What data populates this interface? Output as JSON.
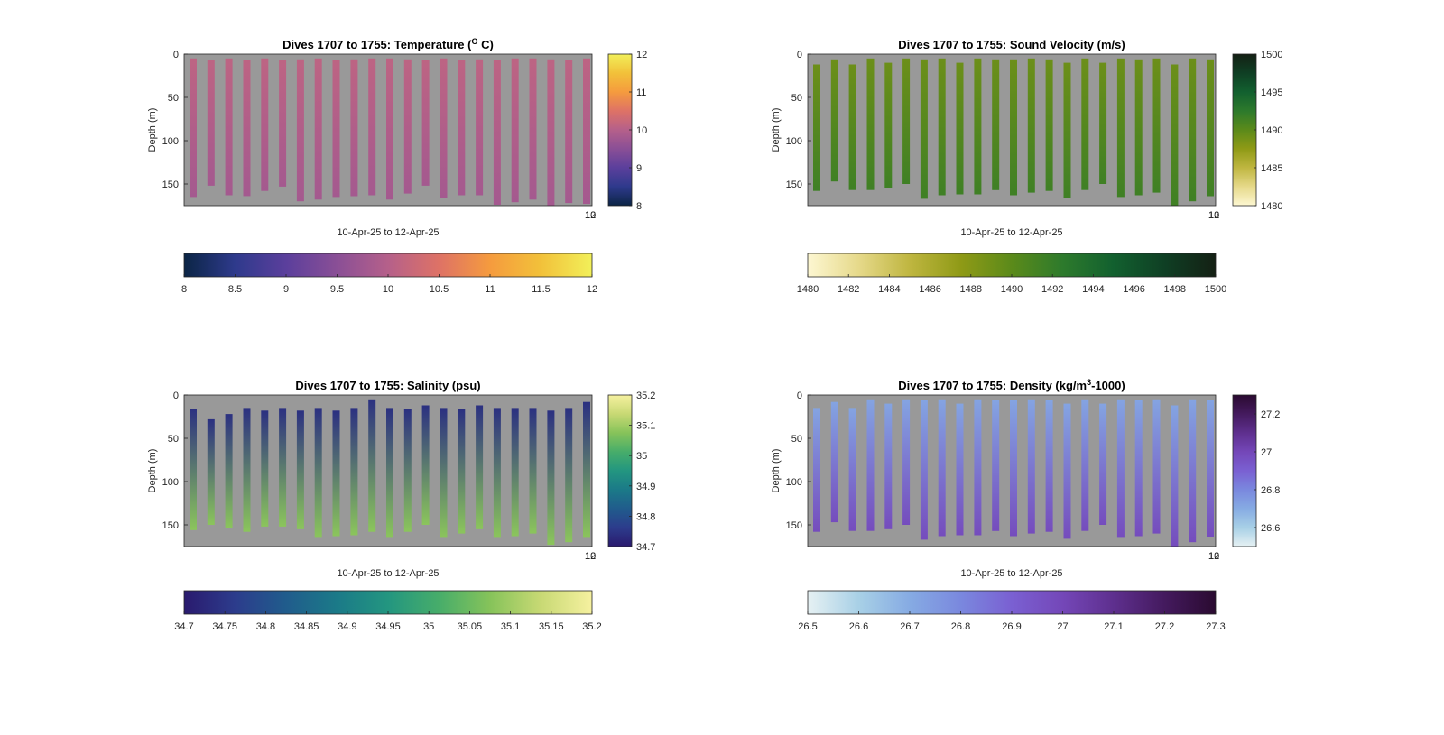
{
  "chart_data": [
    {
      "type": "heatmap",
      "title_main": "Dives 1707 to 1755: Temperature (",
      "title_sup": "O",
      "title_tail": " C)",
      "xlabel": "10-Apr-25 to 12-Apr-25",
      "xtick_labels": [
        "10",
        "12"
      ],
      "ylabel": "Depth (m)",
      "ylim": [
        0,
        175
      ],
      "yticks": [
        0,
        50,
        100,
        150
      ],
      "clim": [
        8,
        12
      ],
      "side_cbar_ticks": [
        8,
        9,
        10,
        11,
        12
      ],
      "bottom_cbar_ticks": [
        8,
        8.5,
        9,
        9.5,
        10,
        10.5,
        11,
        11.5,
        12
      ],
      "colormap": [
        "#0b2545",
        "#2e3a8c",
        "#5b3f9c",
        "#8a4f96",
        "#b5608a",
        "#de7266",
        "#f59b3e",
        "#f2c13a",
        "#f2f05a"
      ],
      "profiles": {
        "top": [
          5,
          7,
          5,
          7,
          5,
          7,
          6,
          5,
          7,
          6,
          5,
          5,
          6,
          7,
          5,
          7,
          6,
          7,
          5,
          5,
          6,
          7,
          5
        ],
        "bottom": [
          165,
          152,
          163,
          164,
          158,
          153,
          170,
          168,
          165,
          164,
          163,
          168,
          161,
          152,
          166,
          163,
          163,
          174,
          171,
          168,
          175,
          172,
          173
        ],
        "surface_value": 10.1,
        "bottom_value": 9.8
      }
    },
    {
      "type": "heatmap",
      "title_main": "Dives 1707 to 1755: Sound Velocity (m/s)",
      "title_sup": "",
      "title_tail": "",
      "xlabel": "10-Apr-25 to 12-Apr-25",
      "xtick_labels": [
        "10",
        "12"
      ],
      "ylabel": "Depth (m)",
      "ylim": [
        0,
        175
      ],
      "yticks": [
        0,
        50,
        100,
        150
      ],
      "clim": [
        1480,
        1500
      ],
      "side_cbar_ticks": [
        1480,
        1485,
        1490,
        1495,
        1500
      ],
      "bottom_cbar_ticks": [
        1480,
        1482,
        1484,
        1486,
        1488,
        1490,
        1492,
        1494,
        1496,
        1498,
        1500
      ],
      "colormap": [
        "#fdf7d2",
        "#e6d98a",
        "#bfb640",
        "#8f9a16",
        "#5b8a1a",
        "#2d7a2c",
        "#12602f",
        "#0f3f24",
        "#142014"
      ],
      "profiles": {
        "top": [
          12,
          6,
          12,
          5,
          10,
          5,
          6,
          5,
          10,
          5,
          6,
          6,
          5,
          6,
          10,
          5,
          10,
          5,
          6,
          5,
          12,
          5,
          6
        ],
        "bottom": [
          158,
          147,
          157,
          157,
          155,
          150,
          167,
          163,
          162,
          162,
          157,
          163,
          160,
          158,
          166,
          157,
          150,
          165,
          163,
          160,
          175,
          170,
          164
        ],
        "surface_value": 1489.2,
        "bottom_value": 1491.5
      }
    },
    {
      "type": "heatmap",
      "title_main": "Dives 1707 to 1755: Salinity (psu)",
      "title_sup": "",
      "title_tail": "",
      "xlabel": "10-Apr-25 to 12-Apr-25",
      "xtick_labels": [
        "10",
        "12"
      ],
      "ylabel": "Depth (m)",
      "ylim": [
        0,
        175
      ],
      "yticks": [
        0,
        50,
        100,
        150
      ],
      "clim": [
        34.7,
        35.2
      ],
      "side_cbar_ticks": [
        34.7,
        34.8,
        34.9,
        35,
        35.1,
        35.2
      ],
      "bottom_cbar_ticks": [
        34.7,
        34.75,
        34.8,
        34.85,
        34.9,
        34.95,
        35,
        35.05,
        35.1,
        35.15,
        35.2
      ],
      "colormap": [
        "#2a1a6e",
        "#2c3c8c",
        "#205c8c",
        "#1b7a88",
        "#239680",
        "#47ad6a",
        "#86c35a",
        "#c8d974",
        "#f6f1a0"
      ],
      "profiles": {
        "top": [
          16,
          28,
          22,
          15,
          18,
          15,
          18,
          15,
          18,
          15,
          5,
          15,
          16,
          12,
          15,
          16,
          12,
          15,
          15,
          15,
          18,
          15,
          8
        ],
        "bottom": [
          156,
          150,
          154,
          158,
          152,
          152,
          155,
          165,
          163,
          162,
          158,
          165,
          158,
          150,
          165,
          160,
          155,
          165,
          163,
          160,
          173,
          170,
          165
        ],
        "surface_value": 34.74,
        "bottom_value": 35.08
      }
    },
    {
      "type": "heatmap",
      "title_main": "Dives 1707 to 1755: Density (kg/m",
      "title_sup": "3",
      "title_tail": "-1000)",
      "xlabel": "10-Apr-25 to 12-Apr-25",
      "xtick_labels": [
        "10",
        "12"
      ],
      "ylabel": "Depth (m)",
      "ylim": [
        0,
        175
      ],
      "yticks": [
        0,
        50,
        100,
        150
      ],
      "clim": [
        26.5,
        27.3
      ],
      "side_cbar_ticks": [
        26.6,
        26.8,
        27,
        27.2
      ],
      "bottom_cbar_ticks": [
        26.5,
        26.6,
        26.7,
        26.8,
        26.9,
        27,
        27.1,
        27.2,
        27.3
      ],
      "colormap": [
        "#e6f1f3",
        "#a8d0e6",
        "#86abe3",
        "#7a88de",
        "#7a60d2",
        "#7447b8",
        "#5e2f8e",
        "#441a5e",
        "#2a0a30"
      ],
      "profiles": {
        "top": [
          15,
          8,
          15,
          5,
          10,
          5,
          6,
          5,
          10,
          5,
          6,
          6,
          5,
          6,
          10,
          5,
          10,
          5,
          6,
          5,
          12,
          5,
          6
        ],
        "bottom": [
          158,
          147,
          157,
          157,
          155,
          150,
          167,
          163,
          162,
          162,
          157,
          163,
          160,
          158,
          166,
          157,
          150,
          165,
          163,
          160,
          175,
          170,
          164
        ],
        "surface_value": 26.72,
        "bottom_value": 26.98
      }
    }
  ]
}
